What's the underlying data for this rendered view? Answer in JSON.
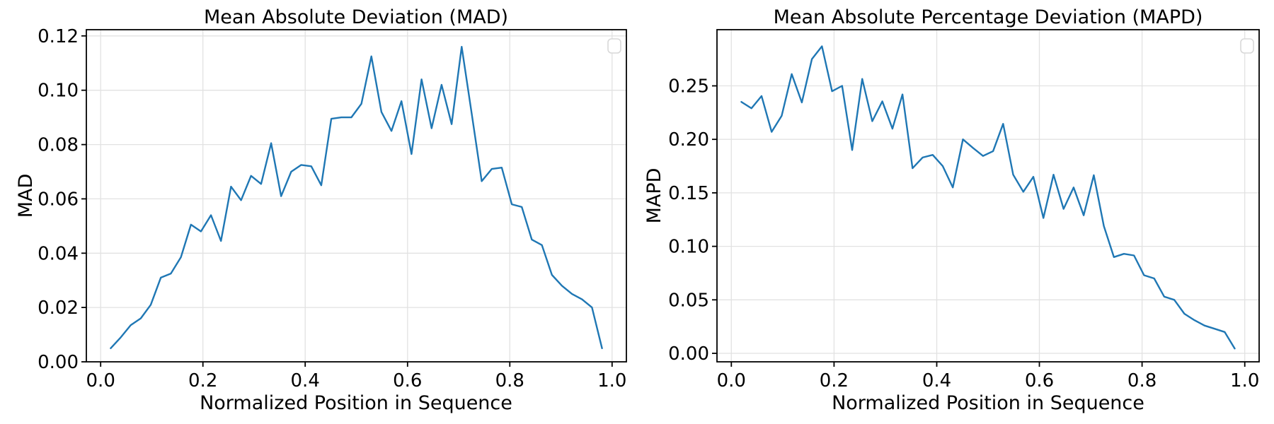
{
  "figure": {
    "background": "#ffffff",
    "text_color": "#000000",
    "grid_color": "#e2e2e2",
    "spine_color": "#000000",
    "legend_border_color": "#d8d8d8",
    "tick_color": "#000000"
  },
  "chart_data": [
    {
      "type": "line",
      "title": "Mean Absolute Deviation (MAD)",
      "xlabel": "Normalized Position in Sequence",
      "ylabel": "MAD",
      "line_color": "#1f77b4",
      "grid": true,
      "legend": {
        "visible": true,
        "entries": [],
        "position": "upper right"
      },
      "xlim": [
        -0.028,
        1.028
      ],
      "ylim": [
        0,
        0.1223
      ],
      "xtick_values": [
        0.0,
        0.2,
        0.4,
        0.6,
        0.8,
        1.0
      ],
      "xtick_labels": [
        "0.0",
        "0.2",
        "0.4",
        "0.6",
        "0.8",
        "1.0"
      ],
      "ytick_values": [
        0.0,
        0.02,
        0.04,
        0.06,
        0.08,
        0.1,
        0.12
      ],
      "ytick_labels": [
        "0.00",
        "0.02",
        "0.04",
        "0.06",
        "0.08",
        "0.10",
        "0.12"
      ],
      "x": [
        0.0196,
        0.0392,
        0.0588,
        0.0784,
        0.098,
        0.1176,
        0.1373,
        0.1569,
        0.1765,
        0.1961,
        0.2157,
        0.2353,
        0.2549,
        0.2745,
        0.2941,
        0.3137,
        0.3333,
        0.3529,
        0.3725,
        0.3922,
        0.4118,
        0.4314,
        0.451,
        0.4706,
        0.4902,
        0.5098,
        0.5294,
        0.549,
        0.5686,
        0.5882,
        0.6078,
        0.6275,
        0.6471,
        0.6667,
        0.6863,
        0.7059,
        0.7255,
        0.7451,
        0.7647,
        0.7843,
        0.8039,
        0.8235,
        0.8431,
        0.8627,
        0.8824,
        0.902,
        0.9216,
        0.9412,
        0.9608,
        0.9804
      ],
      "y": [
        0.005,
        0.009,
        0.0135,
        0.016,
        0.021,
        0.031,
        0.0325,
        0.0385,
        0.0505,
        0.048,
        0.054,
        0.0445,
        0.0645,
        0.0595,
        0.0685,
        0.0655,
        0.0805,
        0.061,
        0.07,
        0.0725,
        0.072,
        0.065,
        0.0895,
        0.09,
        0.09,
        0.095,
        0.1125,
        0.092,
        0.085,
        0.096,
        0.0765,
        0.104,
        0.086,
        0.102,
        0.0875,
        0.116,
        0.0915,
        0.0665,
        0.071,
        0.0715,
        0.058,
        0.057,
        0.045,
        0.043,
        0.032,
        0.028,
        0.025,
        0.023,
        0.02,
        0.005
      ]
    },
    {
      "type": "line",
      "title": "Mean Absolute Percentage Deviation (MAPD)",
      "xlabel": "Normalized Position in Sequence",
      "ylabel": "MAPD",
      "line_color": "#1f77b4",
      "grid": true,
      "legend": {
        "visible": true,
        "entries": [],
        "position": "upper right"
      },
      "xlim": [
        -0.028,
        1.028
      ],
      "ylim": [
        -0.0079,
        0.3025
      ],
      "xtick_values": [
        0.0,
        0.2,
        0.4,
        0.6,
        0.8,
        1.0
      ],
      "xtick_labels": [
        "0.0",
        "0.2",
        "0.4",
        "0.6",
        "0.8",
        "1.0"
      ],
      "ytick_values": [
        0.0,
        0.05,
        0.1,
        0.15,
        0.2,
        0.25
      ],
      "ytick_labels": [
        "0.00",
        "0.05",
        "0.10",
        "0.15",
        "0.20",
        "0.25"
      ],
      "x": [
        0.0196,
        0.0392,
        0.0588,
        0.0784,
        0.098,
        0.1176,
        0.1373,
        0.1569,
        0.1765,
        0.1961,
        0.2157,
        0.2353,
        0.2549,
        0.2745,
        0.2941,
        0.3137,
        0.3333,
        0.3529,
        0.3725,
        0.3922,
        0.4118,
        0.4314,
        0.451,
        0.4706,
        0.4902,
        0.5098,
        0.5294,
        0.549,
        0.5686,
        0.5882,
        0.6078,
        0.6275,
        0.6471,
        0.6667,
        0.6863,
        0.7059,
        0.7255,
        0.7451,
        0.7647,
        0.7843,
        0.8039,
        0.8235,
        0.8431,
        0.8627,
        0.8824,
        0.902,
        0.9216,
        0.9412,
        0.9608,
        0.9804
      ],
      "y": [
        0.235,
        0.229,
        0.2405,
        0.207,
        0.222,
        0.261,
        0.2345,
        0.275,
        0.287,
        0.245,
        0.25,
        0.19,
        0.2565,
        0.217,
        0.2355,
        0.21,
        0.242,
        0.173,
        0.183,
        0.1855,
        0.175,
        0.155,
        0.2,
        0.192,
        0.1845,
        0.189,
        0.2145,
        0.167,
        0.151,
        0.165,
        0.1265,
        0.167,
        0.135,
        0.155,
        0.129,
        0.1665,
        0.119,
        0.09,
        0.093,
        0.0915,
        0.073,
        0.07,
        0.053,
        0.05,
        0.037,
        0.031,
        0.026,
        0.023,
        0.02,
        0.0045
      ]
    }
  ]
}
